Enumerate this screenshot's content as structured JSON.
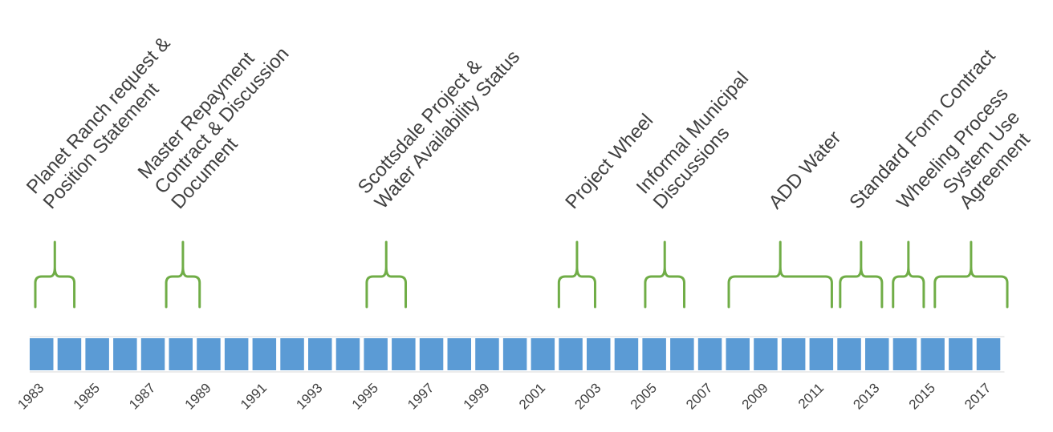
{
  "chart_data": {
    "type": "bar",
    "categories": [
      "1983",
      "1984",
      "1985",
      "1986",
      "1987",
      "1988",
      "1989",
      "1990",
      "1991",
      "1992",
      "1993",
      "1994",
      "1995",
      "1996",
      "1997",
      "1998",
      "1999",
      "2000",
      "2001",
      "2002",
      "2003",
      "2004",
      "2005",
      "2006",
      "2007",
      "2008",
      "2009",
      "2010",
      "2011",
      "2012",
      "2013",
      "2014",
      "2015",
      "2016",
      "2017"
    ],
    "values": [
      1,
      1,
      1,
      1,
      1,
      1,
      1,
      1,
      1,
      1,
      1,
      1,
      1,
      1,
      1,
      1,
      1,
      1,
      1,
      1,
      1,
      1,
      1,
      1,
      1,
      1,
      1,
      1,
      1,
      1,
      1,
      1,
      1,
      1,
      1
    ],
    "tick_labels": [
      "1983",
      "1985",
      "1987",
      "1989",
      "1991",
      "1993",
      "1995",
      "1997",
      "1999",
      "2001",
      "2003",
      "2005",
      "2007",
      "2009",
      "2011",
      "2013",
      "2015",
      "2017"
    ],
    "xlim": [
      1983,
      2017
    ],
    "grid": true,
    "colors": {
      "bar": "#5b9bd5",
      "brace": "#70ad47",
      "text": "#404040",
      "grid": "#d9d9d9"
    },
    "events": [
      {
        "start": 1983.0,
        "end": 1984.4,
        "lines": [
          "Planet Ranch request &",
          "Position Statement"
        ]
      },
      {
        "start": 1987.7,
        "end": 1988.9,
        "lines": [
          "Master Repayment",
          "Contract & Discussion",
          "Document"
        ]
      },
      {
        "start": 1994.9,
        "end": 1996.3,
        "lines": [
          "Scottsdale Project &",
          "Water Availability Status"
        ]
      },
      {
        "start": 2001.8,
        "end": 2003.1,
        "lines": [
          "Project Wheel"
        ]
      },
      {
        "start": 2004.9,
        "end": 2006.3,
        "lines": [
          "Informal Municipal",
          "Discussions"
        ]
      },
      {
        "start": 2007.9,
        "end": 2011.6,
        "lines": [
          "ADD Water"
        ]
      },
      {
        "start": 2011.9,
        "end": 2013.4,
        "lines": [
          "Standard Form Contract"
        ]
      },
      {
        "start": 2013.8,
        "end": 2014.9,
        "lines": [
          "Wheeling Process"
        ]
      },
      {
        "start": 2015.3,
        "end": 2017.9,
        "lines": [
          "System Use",
          "Agreement"
        ]
      }
    ]
  }
}
